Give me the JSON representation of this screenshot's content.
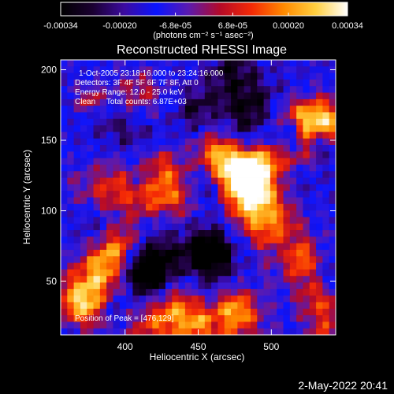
{
  "chart_data": {
    "type": "heatmap",
    "title": "Reconstructed RHESSI Image",
    "xlabel": "Heliocentric X (arcsec)",
    "ylabel": "Heliocentric Y (arcsec)",
    "xlim": [
      356,
      544
    ],
    "ylim": [
      12,
      207
    ],
    "x_ticks": [
      400,
      450,
      500
    ],
    "y_ticks": [
      50,
      100,
      150,
      200
    ],
    "colorbar": {
      "label": "(photons cm⁻² s⁻¹ asec⁻²)",
      "range": [
        -0.00034,
        0.00034
      ],
      "tick_values": [
        -0.00034,
        -0.0002,
        -6.8e-05,
        6.8e-05,
        0.0002,
        0.00034
      ],
      "tick_labels": [
        "-0.00034",
        "-0.00020",
        "-6.8e-05",
        "6.8e-05",
        "0.00020",
        "0.00034"
      ],
      "colormap": [
        "#000000",
        "#1a0030",
        "#3c0ba0",
        "#0a14ff",
        "#5a1ab0",
        "#b40a28",
        "#f52a05",
        "#ff8a00",
        "#ffcf40",
        "#ffffff"
      ]
    },
    "annotations": [
      "1-Oct-2005 23:18:16.000 to 23:24:16.000",
      "Detectors: 3F 4F 5F 6F 7F 8F, Att 0",
      "Energy Range: 12.0 - 25.0 keV",
      "Clean     Total counts: 6.87E+03"
    ],
    "peak_label": "Position of Peak = [476,129]",
    "peak": [
      476,
      129
    ],
    "grid": false
  },
  "footer": {
    "timestamp": "2-May-2022 20:41"
  }
}
